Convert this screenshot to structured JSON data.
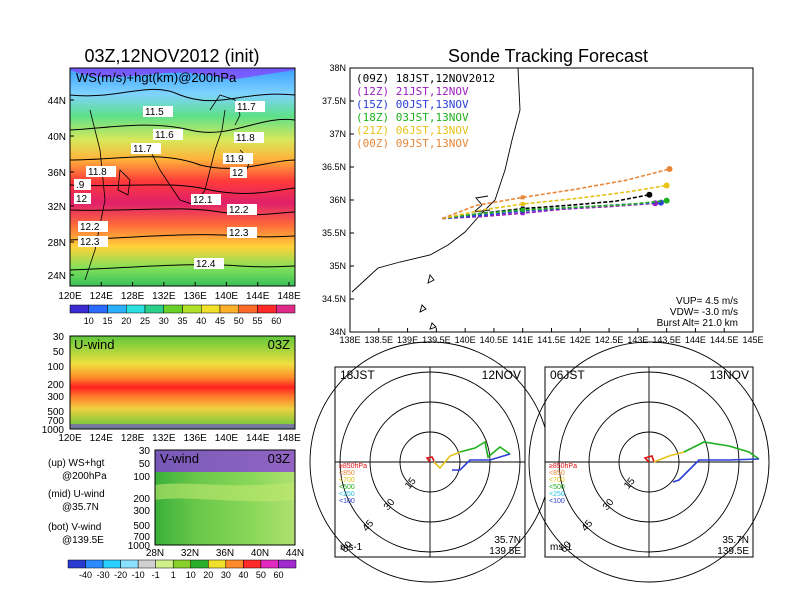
{
  "left_title": "03Z,12NOV2012 (init)",
  "right_title": "Sonde Tracking Forecast",
  "colors": {
    "bg": "#ffffff",
    "axis": "#000000"
  },
  "map_panel": {
    "label": "WS(m/s)+hgt(km)@200hPa",
    "lat_ticks": [
      "24N",
      "28N",
      "32N",
      "36N",
      "40N",
      "44N"
    ],
    "lon_ticks": [
      "120E",
      "124E",
      "128E",
      "132E",
      "136E",
      "140E",
      "144E",
      "148E"
    ],
    "height_labels": [
      "11.5",
      "11.7",
      "11.6",
      "11.8",
      "11.7",
      "11.9",
      "11.8",
      "12",
      "12.1",
      "12.2",
      "12.2",
      "12.3",
      "12.3",
      "12.4",
      ".9",
      "12"
    ],
    "colorbar_ticks": [
      "10",
      "15",
      "20",
      "25",
      "30",
      "35",
      "40",
      "45",
      "50",
      "55",
      "60"
    ]
  },
  "uwind_panel": {
    "label": "U-wind",
    "time": "03Z",
    "p_ticks": [
      "30",
      "50",
      "100",
      "200",
      "300",
      "500",
      "700",
      "1000"
    ],
    "lon_ticks": [
      "120E",
      "124E",
      "128E",
      "132E",
      "136E",
      "140E",
      "144E",
      "148E"
    ]
  },
  "vwind_panel": {
    "label": "V-wind",
    "time": "03Z",
    "p_ticks": [
      "30",
      "50",
      "100",
      "200",
      "300",
      "500",
      "700",
      "1000"
    ],
    "lat_ticks": [
      "28N",
      "32N",
      "36N",
      "40N",
      "44N"
    ],
    "colorbar_ticks": [
      "-40",
      "-30",
      "-20",
      "-10",
      "-1",
      "1",
      "10",
      "20",
      "30",
      "40",
      "50",
      "60"
    ]
  },
  "notes": [
    {
      "a": "(up) WS+hgt",
      "b": "@200hPa"
    },
    {
      "a": "(mid) U-wind",
      "b": "@35.7N"
    },
    {
      "a": "(bot) V-wind",
      "b": "@139.5E"
    }
  ],
  "track_panel": {
    "lat_ticks": [
      "34N",
      "34.5N",
      "35N",
      "35.5N",
      "36N",
      "36.5N",
      "37N",
      "37.5N",
      "38N"
    ],
    "lon_ticks": [
      "138E",
      "138.5E",
      "139E",
      "139.5E",
      "140E",
      "140.5E",
      "141E",
      "141.5E",
      "142E",
      "142.5E",
      "143E",
      "143.5E",
      "144E",
      "144.5E",
      "145E"
    ],
    "legend": [
      {
        "text": "(09Z) 18JST,12NOV2012",
        "color": "#000000"
      },
      {
        "text": "(12Z) 21JST,12NOV",
        "color": "#9b1fbf"
      },
      {
        "text": "(15Z) 00JST,13NOV",
        "color": "#2a3fd6"
      },
      {
        "text": "(18Z) 03JST,13NOV",
        "color": "#1fb01f"
      },
      {
        "text": "(21Z) 06JST,13NOV",
        "color": "#e6c21a"
      },
      {
        "text": "(00Z) 09JST,13NOV",
        "color": "#e8873a"
      }
    ],
    "params": [
      "VUP= 4.5 m/s",
      "VDW= -3.0 m/s",
      "Burst Alt= 21.0 km"
    ]
  },
  "hodo_left": {
    "time": "18JST",
    "date": "12NOV",
    "lat": "35.7N",
    "lon": "139.5E",
    "unit": "ms-1",
    "rings": [
      "15",
      "30",
      "45",
      "60"
    ]
  },
  "hodo_right": {
    "time": "06JST",
    "date": "13NOV",
    "lat": "35.7N",
    "lon": "139.5E",
    "unit": "ms-1",
    "rings": [
      "15",
      "30",
      "45",
      "60"
    ]
  },
  "hodo_legend": [
    {
      "text": "≥850hPa",
      "color": "#e01010"
    },
    {
      "text": "<850",
      "color": "#e8873a"
    },
    {
      "text": "<700",
      "color": "#e6c21a"
    },
    {
      "text": "<500",
      "color": "#1fb01f"
    },
    {
      "text": "<250",
      "color": "#2ac0e0"
    },
    {
      "text": "<100",
      "color": "#2a3fd6"
    }
  ],
  "chart_data": {
    "type": "line",
    "title": "Sonde Tracking Forecast",
    "xlabel": "",
    "ylabel": "",
    "xlim": [
      138,
      145
    ],
    "ylim": [
      34,
      38
    ],
    "series": [
      {
        "name": "(09Z) 18JST,12NOV2012",
        "x": [
          139.6,
          140.3,
          141.0,
          141.8,
          142.6,
          143.2
        ],
        "y": [
          35.72,
          35.8,
          35.87,
          35.92,
          35.98,
          36.08
        ]
      },
      {
        "name": "(12Z) 21JST,12NOV",
        "x": [
          139.6,
          140.3,
          141.0,
          141.7,
          142.5,
          143.3
        ],
        "y": [
          35.72,
          35.75,
          35.8,
          35.86,
          35.9,
          35.95
        ]
      },
      {
        "name": "(15Z) 00JST,13NOV",
        "x": [
          139.6,
          140.3,
          141.0,
          141.8,
          142.7,
          143.4
        ],
        "y": [
          35.72,
          35.77,
          35.83,
          35.88,
          35.93,
          35.96
        ]
      },
      {
        "name": "(18Z) 03JST,13NOV",
        "x": [
          139.6,
          140.2,
          141.0,
          141.9,
          142.8,
          143.5
        ],
        "y": [
          35.72,
          35.79,
          35.85,
          35.89,
          35.93,
          35.99
        ]
      },
      {
        "name": "(21Z) 06JST,13NOV",
        "x": [
          139.6,
          140.3,
          141.0,
          141.9,
          142.8,
          143.5
        ],
        "y": [
          35.72,
          35.85,
          35.94,
          36.02,
          36.12,
          36.22
        ]
      },
      {
        "name": "(00Z) 09JST,13NOV",
        "x": [
          139.6,
          140.2,
          141.0,
          141.9,
          142.8,
          143.55
        ],
        "y": [
          35.72,
          35.92,
          36.04,
          36.16,
          36.3,
          36.47
        ]
      }
    ]
  }
}
